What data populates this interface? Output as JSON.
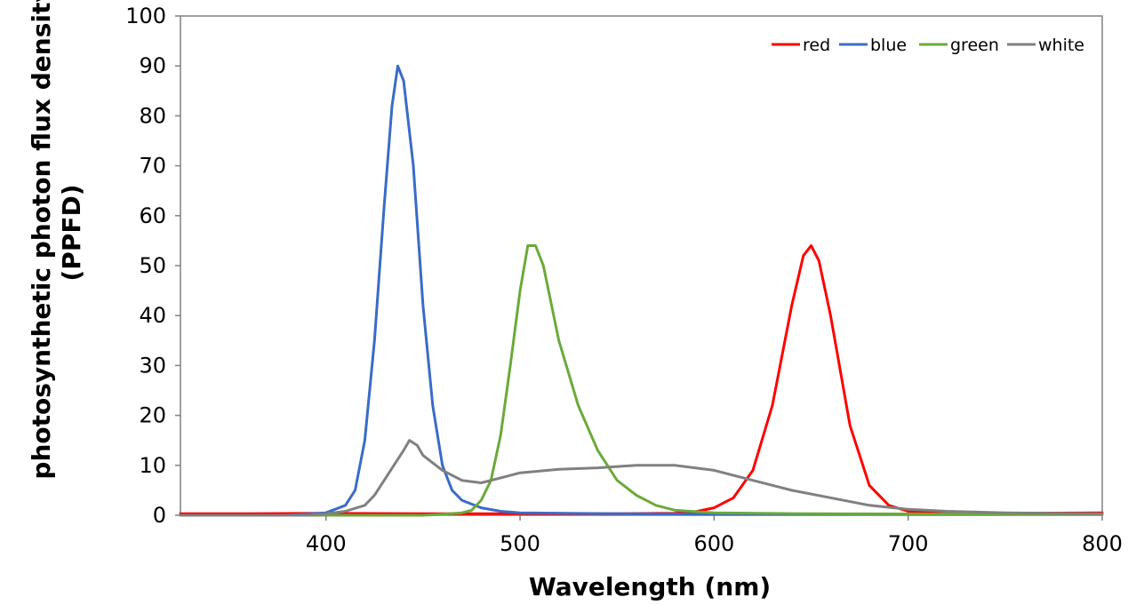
{
  "chart_data": {
    "type": "line",
    "title": "",
    "xlabel": "Wavelength (nm)",
    "ylabel_lines": [
      "photosynthetic photon flux density",
      "(PPFD)"
    ],
    "xlim": [
      325,
      800
    ],
    "ylim": [
      0,
      100
    ],
    "x_ticks": [
      400,
      500,
      600,
      700,
      800
    ],
    "y_ticks": [
      0,
      10,
      20,
      30,
      40,
      50,
      60,
      70,
      80,
      90,
      100
    ],
    "grid": false,
    "legend_position": "top-right",
    "series": [
      {
        "name": "red",
        "color": "#ff0000",
        "points": [
          [
            325,
            0.3
          ],
          [
            360,
            0.3
          ],
          [
            400,
            0.4
          ],
          [
            450,
            0.3
          ],
          [
            500,
            0.3
          ],
          [
            550,
            0.3
          ],
          [
            580,
            0.4
          ],
          [
            590,
            0.7
          ],
          [
            600,
            1.5
          ],
          [
            610,
            3.5
          ],
          [
            620,
            9
          ],
          [
            630,
            22
          ],
          [
            640,
            42
          ],
          [
            646,
            52
          ],
          [
            650,
            54
          ],
          [
            654,
            51
          ],
          [
            660,
            40
          ],
          [
            670,
            18
          ],
          [
            680,
            6
          ],
          [
            690,
            2
          ],
          [
            700,
            0.8
          ],
          [
            720,
            0.5
          ],
          [
            750,
            0.4
          ],
          [
            800,
            0.5
          ]
        ]
      },
      {
        "name": "blue",
        "color": "#3a6cc6",
        "points": [
          [
            325,
            0
          ],
          [
            380,
            0
          ],
          [
            400,
            0.5
          ],
          [
            410,
            2
          ],
          [
            415,
            5
          ],
          [
            420,
            15
          ],
          [
            425,
            35
          ],
          [
            430,
            62
          ],
          [
            434,
            82
          ],
          [
            437,
            90
          ],
          [
            440,
            87
          ],
          [
            445,
            70
          ],
          [
            450,
            42
          ],
          [
            455,
            22
          ],
          [
            460,
            10
          ],
          [
            465,
            5
          ],
          [
            470,
            3
          ],
          [
            480,
            1.5
          ],
          [
            490,
            0.8
          ],
          [
            500,
            0.5
          ],
          [
            550,
            0.3
          ],
          [
            600,
            0.2
          ],
          [
            800,
            0.2
          ]
        ]
      },
      {
        "name": "green",
        "color": "#6aaa3a",
        "points": [
          [
            325,
            0
          ],
          [
            450,
            0
          ],
          [
            460,
            0.2
          ],
          [
            470,
            0.5
          ],
          [
            475,
            1
          ],
          [
            480,
            3
          ],
          [
            485,
            7
          ],
          [
            490,
            16
          ],
          [
            495,
            30
          ],
          [
            500,
            45
          ],
          [
            504,
            54
          ],
          [
            508,
            54
          ],
          [
            512,
            50
          ],
          [
            520,
            35
          ],
          [
            530,
            22
          ],
          [
            540,
            13
          ],
          [
            550,
            7
          ],
          [
            560,
            4
          ],
          [
            570,
            2
          ],
          [
            580,
            1
          ],
          [
            600,
            0.5
          ],
          [
            650,
            0.3
          ],
          [
            800,
            0.2
          ]
        ]
      },
      {
        "name": "white",
        "color": "#808080",
        "points": [
          [
            325,
            0
          ],
          [
            390,
            0
          ],
          [
            400,
            0.3
          ],
          [
            410,
            0.8
          ],
          [
            420,
            2
          ],
          [
            425,
            4
          ],
          [
            430,
            7
          ],
          [
            435,
            10
          ],
          [
            440,
            13
          ],
          [
            443,
            15
          ],
          [
            447,
            14
          ],
          [
            450,
            12
          ],
          [
            460,
            9
          ],
          [
            470,
            7
          ],
          [
            480,
            6.5
          ],
          [
            490,
            7.5
          ],
          [
            500,
            8.5
          ],
          [
            520,
            9.2
          ],
          [
            540,
            9.5
          ],
          [
            560,
            10
          ],
          [
            580,
            10
          ],
          [
            600,
            9
          ],
          [
            620,
            7
          ],
          [
            640,
            5
          ],
          [
            660,
            3.5
          ],
          [
            680,
            2
          ],
          [
            700,
            1.2
          ],
          [
            720,
            0.8
          ],
          [
            750,
            0.5
          ],
          [
            800,
            0.3
          ]
        ]
      }
    ]
  }
}
